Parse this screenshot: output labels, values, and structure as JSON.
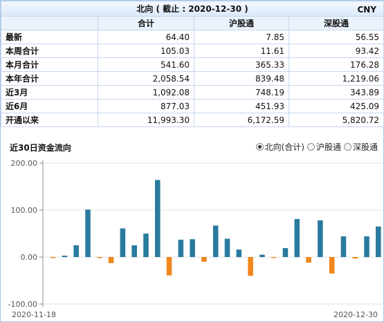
{
  "header": {
    "title": "北向 ( 截止 : 2020-12-30 )",
    "currency": "CNY"
  },
  "table": {
    "columns": [
      "合计",
      "沪股通",
      "深股通"
    ],
    "rows": [
      {
        "label": "最新",
        "values": [
          "64.40",
          "7.85",
          "56.55"
        ]
      },
      {
        "label": "本周合计",
        "values": [
          "105.03",
          "11.61",
          "93.42"
        ]
      },
      {
        "label": "本月合计",
        "values": [
          "541.60",
          "365.33",
          "176.28"
        ]
      },
      {
        "label": "本年合计",
        "values": [
          "2,058.54",
          "839.48",
          "1,219.06"
        ]
      },
      {
        "label": "近3月",
        "values": [
          "1,092.08",
          "748.19",
          "343.89"
        ]
      },
      {
        "label": "近6月",
        "values": [
          "877.03",
          "451.93",
          "425.09"
        ]
      },
      {
        "label": "开通以来",
        "values": [
          "11,993.30",
          "6,172.59",
          "5,820.72"
        ]
      }
    ]
  },
  "chart_section": {
    "title": "近30日资金流向",
    "options": [
      {
        "label": "北向(合计)",
        "selected": true
      },
      {
        "label": "沪股通",
        "selected": false
      },
      {
        "label": "深股通",
        "selected": false
      }
    ]
  },
  "colors": {
    "positive": "#2a7a9e",
    "negative": "#f0861c",
    "grid": "#e2e2e2",
    "axis": "#8c8c8c"
  },
  "chart_data": {
    "type": "bar",
    "title": "",
    "xlabel": "",
    "ylabel": "",
    "ylim": [
      -100,
      200
    ],
    "yticks": [
      "200.00",
      "100.00",
      "0.00",
      "-100.00"
    ],
    "ytick_values": [
      200,
      100,
      0,
      -100
    ],
    "x_range": [
      "2020-11-18",
      "2020-12-30"
    ],
    "x_tick_labels": [
      "2020-11-18",
      "2020-12-30"
    ],
    "grid": "horizontal",
    "values": [
      -2,
      3,
      25,
      101,
      -2,
      -13,
      61,
      25,
      50,
      164,
      -39,
      37,
      38,
      -10,
      67,
      39,
      16,
      -40,
      5,
      -2,
      19,
      81,
      -12,
      78,
      -35,
      44,
      -3,
      44,
      65
    ]
  }
}
